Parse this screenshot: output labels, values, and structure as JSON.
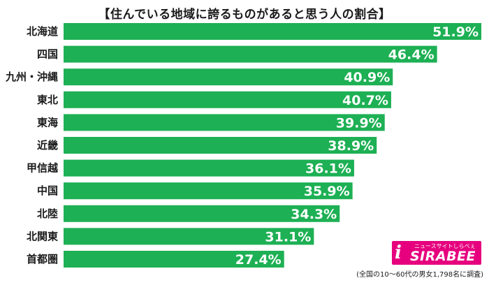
{
  "chart_data": {
    "type": "bar",
    "orientation": "horizontal",
    "title": "【住んでいる地域に誇るものがあると思う人の割合】",
    "categories": [
      "北海道",
      "四国",
      "九州・沖縄",
      "東北",
      "東海",
      "近畿",
      "甲信越",
      "中国",
      "北陸",
      "北関東",
      "首都圏"
    ],
    "values": [
      51.9,
      46.4,
      40.9,
      40.7,
      39.9,
      38.9,
      36.1,
      35.9,
      34.3,
      31.1,
      27.4
    ],
    "value_labels": [
      "51.9%",
      "46.4%",
      "40.9%",
      "40.7%",
      "39.9%",
      "38.9%",
      "36.1%",
      "35.9%",
      "34.3%",
      "31.1%",
      "27.4%"
    ],
    "unit": "%",
    "bar_color": "#1db054",
    "value_label_color": "#ffffff",
    "xlim": [
      0,
      51.9
    ],
    "grid": false,
    "legend": "none",
    "xlabel": "",
    "ylabel": ""
  },
  "logo": {
    "brand": "SIRABEE",
    "mark": "i",
    "tagline": "ニュースサイトしらべぇ",
    "color": "#e6007e"
  },
  "footnote": "(全国の10～60代の男女1,798名に調査)"
}
